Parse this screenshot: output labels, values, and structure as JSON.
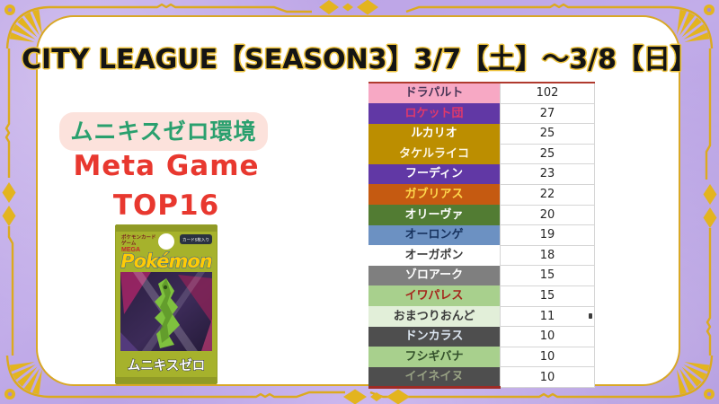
{
  "title": {
    "text": "CITY LEAGUE【SEASON3】3/7【土】〜3/8【日】"
  },
  "left_panel": {
    "environment_badge": "ムニキスゼロ環境",
    "meta_line1": "Meta Game",
    "meta_line2": "TOP16"
  },
  "pack": {
    "brand_line1": "ポケモンカード",
    "brand_line2": "ゲーム",
    "brand_line3": "MEGA",
    "cards_badge": "カード5枚入り",
    "logo": "Pokémon",
    "product_name": "ムニキスゼロ"
  },
  "table": {
    "rows": [
      {
        "name": "ドラパルト",
        "value": 102,
        "bg": "#F7A8C4",
        "fg": "#4A3557"
      },
      {
        "name": "ロケット団",
        "value": 27,
        "bg": "#6138A5",
        "fg": "#E0396B"
      },
      {
        "name": "ルカリオ",
        "value": 25,
        "bg": "#BC8E00",
        "fg": "#FFFFFF"
      },
      {
        "name": "タケルライコ",
        "value": 25,
        "bg": "#BC8E00",
        "fg": "#FDF6E3"
      },
      {
        "name": "フーディン",
        "value": 23,
        "bg": "#6138A5",
        "fg": "#FFFFFF"
      },
      {
        "name": "ガブリアス",
        "value": 22,
        "bg": "#C55A11",
        "fg": "#FFD84D"
      },
      {
        "name": "オリーヴァ",
        "value": 20,
        "bg": "#527C33",
        "fg": "#FFFFFF"
      },
      {
        "name": "オーロンゲ",
        "value": 19,
        "bg": "#6C91C2",
        "fg": "#17325E"
      },
      {
        "name": "オーガポン",
        "value": 18,
        "bg": "#FFFFFF",
        "fg": "#3B3B3B"
      },
      {
        "name": "ゾロアーク",
        "value": 15,
        "bg": "#7F7F7F",
        "fg": "#FFFFFF"
      },
      {
        "name": "イワパレス",
        "value": 15,
        "bg": "#A8D08D",
        "fg": "#A5261C"
      },
      {
        "name": "おまつりおんど",
        "value": 11,
        "bg": "#E2EFD9",
        "fg": "#3B3B3B"
      },
      {
        "name": "ドンカラス",
        "value": 10,
        "bg": "#4E4E4E",
        "fg": "#DCE6F1"
      },
      {
        "name": "フシギバナ",
        "value": 10,
        "bg": "#A8D08D",
        "fg": "#33502B"
      },
      {
        "name": "イイネイヌ",
        "value": 10,
        "bg": "#4E4E4E",
        "fg": "#97A183"
      }
    ]
  },
  "chart_data": {
    "type": "table",
    "title": "CITY LEAGUE【SEASON3】3/7【土】〜3/8【日】",
    "subtitle": "ムニキスゼロ環境 Meta Game TOP16",
    "categories": [
      "ドラパルト",
      "ロケット団",
      "ルカリオ",
      "タケルライコ",
      "フーディン",
      "ガブリアス",
      "オリーヴァ",
      "オーロンゲ",
      "オーガポン",
      "ゾロアーク",
      "イワパレス",
      "おまつりおんど",
      "ドンカラス",
      "フシギバナ",
      "イイネイヌ"
    ],
    "values": [
      102,
      27,
      25,
      25,
      23,
      22,
      20,
      19,
      18,
      15,
      15,
      11,
      10,
      10,
      10
    ]
  },
  "colors": {
    "frame_purple": "#BCA4E6",
    "frame_gold": "#DCAA1E",
    "accent_red": "#E8382F",
    "badge_green": "#2AA06E",
    "badge_bg": "#FCE2DC",
    "table_border_red": "#B03A2E"
  }
}
